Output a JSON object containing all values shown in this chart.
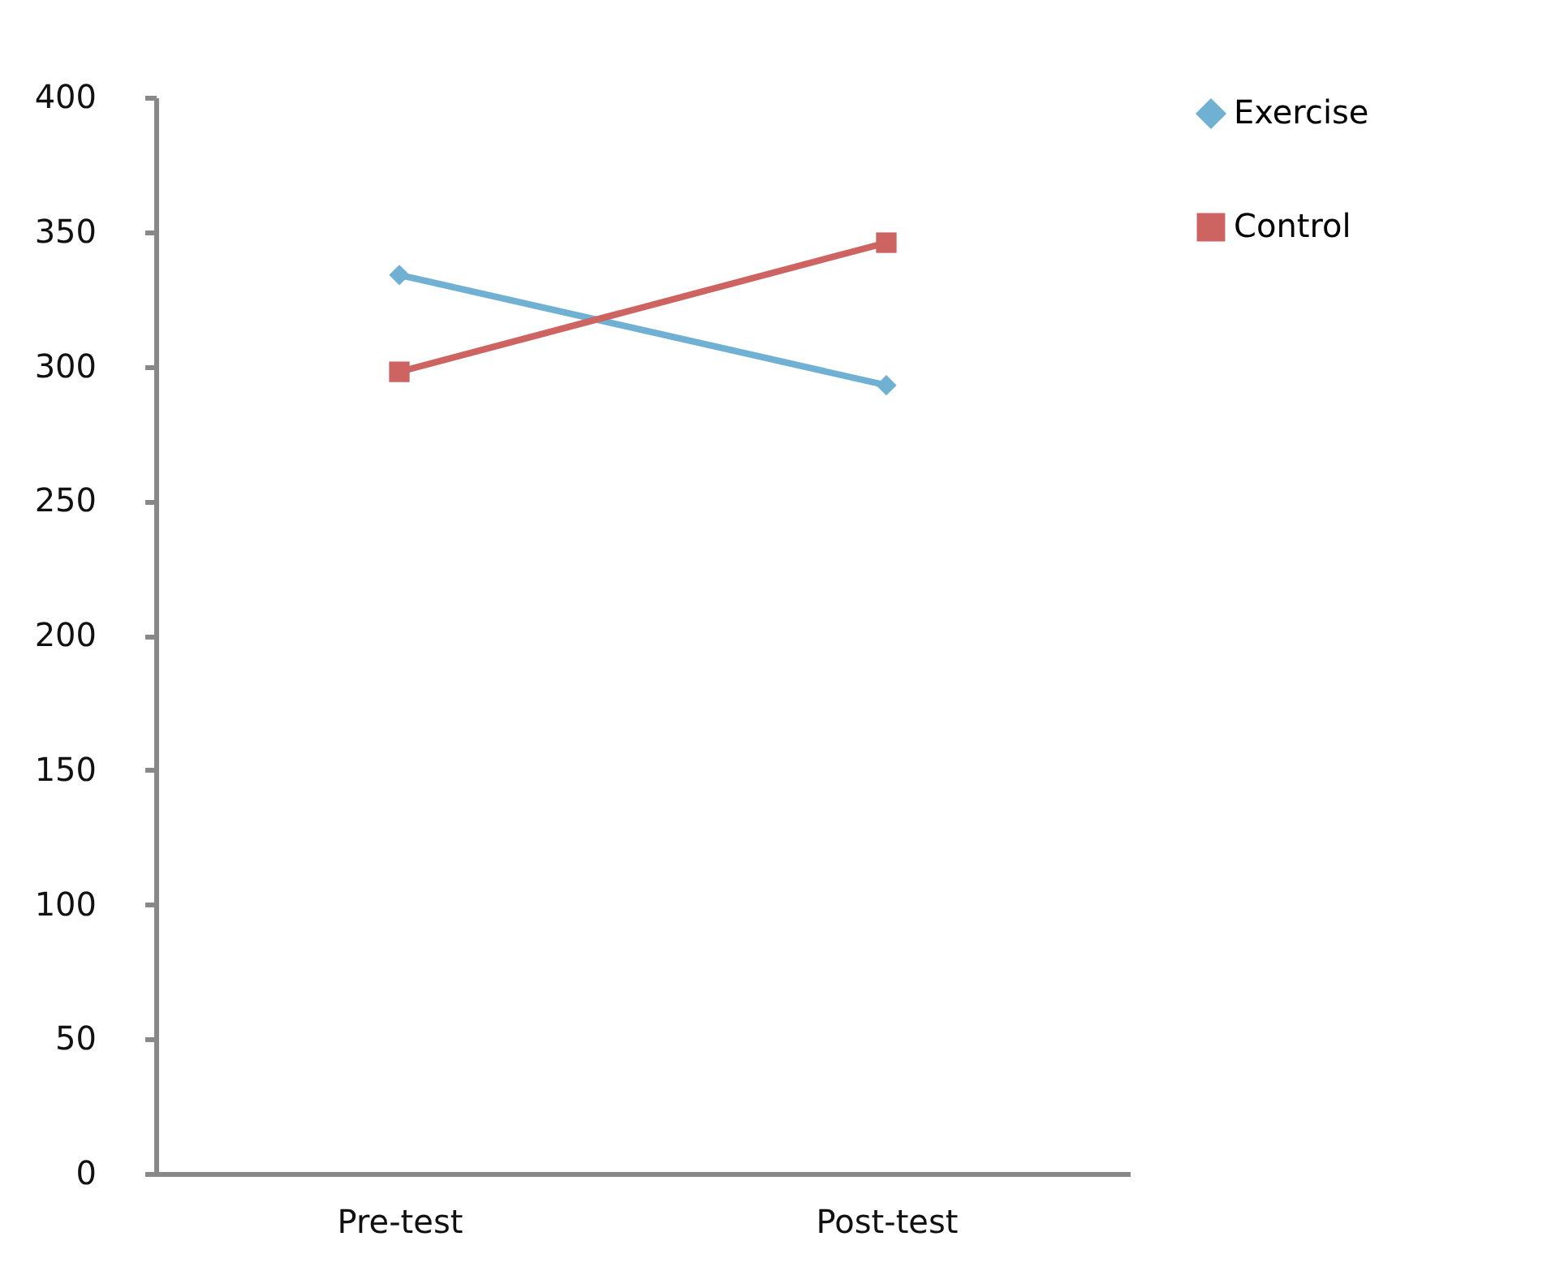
{
  "chart_data": {
    "type": "line",
    "categories": [
      "Pre-test",
      "Post-test"
    ],
    "series": [
      {
        "name": "Exercise",
        "color": "#70b0d2",
        "values": [
          334,
          293
        ],
        "marker": "diamond"
      },
      {
        "name": "Control",
        "color": "#cd6462",
        "values": [
          298,
          346
        ],
        "marker": "square"
      }
    ],
    "ylim": [
      0,
      400
    ],
    "yticks": [
      0,
      50,
      100,
      150,
      200,
      250,
      300,
      350,
      400
    ],
    "grid": false,
    "legend": "right"
  }
}
